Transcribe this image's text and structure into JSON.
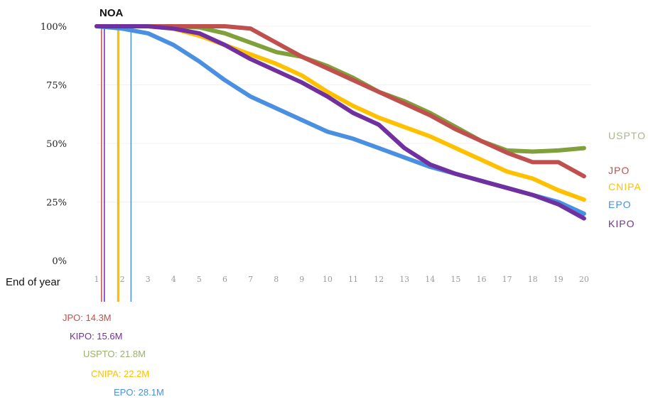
{
  "chart_data": {
    "type": "line",
    "title": "",
    "marker_label": "NOA",
    "xlabel": "End of year",
    "x": [
      1,
      2,
      3,
      4,
      5,
      6,
      7,
      8,
      9,
      10,
      11,
      12,
      13,
      14,
      15,
      16,
      17,
      18,
      19,
      20
    ],
    "y_ticks": [
      "100%",
      "75%",
      "50%",
      "25%",
      "0%"
    ],
    "ylim": [
      0,
      100
    ],
    "series": [
      {
        "name": "USPTO",
        "color": "#7fa03a",
        "x": [
          1,
          2,
          3,
          4,
          5,
          6,
          7,
          8,
          9,
          10,
          11,
          12,
          13,
          14,
          15,
          16,
          17,
          18,
          19,
          20
        ],
        "y": [
          100,
          100,
          100,
          100,
          99.5,
          97,
          93,
          89,
          87,
          83,
          78,
          72,
          68,
          63,
          57,
          51,
          47,
          46.5,
          47,
          48
        ]
      },
      {
        "name": "JPO",
        "color": "#c0504d",
        "x": [
          1,
          2,
          3,
          4,
          5,
          6,
          7,
          8,
          9,
          10,
          11,
          12,
          13,
          14,
          15,
          16,
          17,
          18,
          19,
          20
        ],
        "y": [
          100,
          100,
          100,
          100,
          100,
          100,
          99,
          93,
          87,
          82,
          77,
          72,
          67,
          62,
          56,
          51,
          46,
          42,
          42,
          36
        ]
      },
      {
        "name": "CNIPA",
        "color": "#ffc000",
        "x": [
          1,
          2,
          3,
          4,
          5,
          6,
          7,
          8,
          9,
          10,
          11,
          12,
          13,
          14,
          15,
          16,
          17,
          18,
          19,
          20
        ],
        "y": [
          100,
          100,
          100,
          99,
          96,
          92,
          88,
          84,
          79,
          72,
          66,
          61,
          57,
          53,
          48,
          43,
          38,
          35,
          30,
          26
        ]
      },
      {
        "name": "EPO",
        "color": "#4a90e2",
        "x": [
          1,
          2,
          3,
          4,
          5,
          6,
          7,
          8,
          9,
          10,
          11,
          12,
          13,
          14,
          15,
          16,
          17,
          18,
          19,
          20
        ],
        "y": [
          100,
          99,
          97,
          92,
          85,
          77,
          70,
          65,
          60,
          55,
          52,
          48,
          44,
          40,
          37,
          34,
          31,
          28,
          25,
          20
        ]
      },
      {
        "name": "KIPO",
        "color": "#7030a0",
        "x": [
          1,
          2,
          3,
          4,
          5,
          6,
          7,
          8,
          9,
          10,
          11,
          12,
          13,
          14,
          15,
          16,
          17,
          18,
          19,
          20
        ],
        "y": [
          100,
          100,
          100,
          99,
          97,
          92,
          86,
          81,
          76,
          70,
          63,
          58,
          48,
          41,
          37,
          34,
          31,
          28,
          24,
          18
        ]
      }
    ],
    "noa_markers": [
      {
        "label": "JPO: 14.3M",
        "x": 1.19,
        "color": "#c0504d"
      },
      {
        "label": "KIPO: 15.6M",
        "x": 1.3,
        "color": "#7030a0"
      },
      {
        "label": "USPTO: 21.8M",
        "x": 1.82,
        "color": "#9bb06a"
      },
      {
        "label": "CNIPA: 22.2M",
        "x": 1.85,
        "color": "#ffc000"
      },
      {
        "label": "EPO: 28.1M",
        "x": 2.34,
        "color": "#4a90e2"
      }
    ]
  }
}
